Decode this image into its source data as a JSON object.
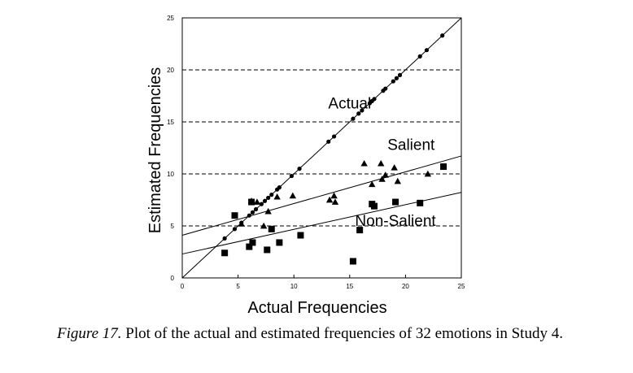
{
  "chart_data": {
    "type": "scatter",
    "xlabel": "Actual Frequencies",
    "ylabel": "Estimated Frequencies",
    "xlim": [
      0,
      25
    ],
    "ylim": [
      0,
      25
    ],
    "x_ticks": [
      "0",
      "5",
      "10",
      "15",
      "20",
      "25"
    ],
    "y_ticks": [
      "0",
      "5",
      "10",
      "15",
      "20",
      "25"
    ],
    "gridlines_dashed_y": [
      5,
      10,
      15,
      20
    ],
    "series": [
      {
        "name": "Actual",
        "marker": "circle",
        "points": [
          [
            3.8,
            3.8
          ],
          [
            4.7,
            4.7
          ],
          [
            5.3,
            5.3
          ],
          [
            6.0,
            6.0
          ],
          [
            6.3,
            6.3
          ],
          [
            6.6,
            6.6
          ],
          [
            7.1,
            7.1
          ],
          [
            7.4,
            7.4
          ],
          [
            7.7,
            7.7
          ],
          [
            8.0,
            8.0
          ],
          [
            8.5,
            8.5
          ],
          [
            8.7,
            8.7
          ],
          [
            9.8,
            9.8
          ],
          [
            10.5,
            10.5
          ],
          [
            13.1,
            13.1
          ],
          [
            13.6,
            13.6
          ],
          [
            15.3,
            15.3
          ],
          [
            15.8,
            15.8
          ],
          [
            16.1,
            16.1
          ],
          [
            16.8,
            16.8
          ],
          [
            17.0,
            17.0
          ],
          [
            17.2,
            17.2
          ],
          [
            18.0,
            18.0
          ],
          [
            18.2,
            18.2
          ],
          [
            18.9,
            18.9
          ],
          [
            19.2,
            19.2
          ],
          [
            19.5,
            19.5
          ],
          [
            21.3,
            21.3
          ],
          [
            21.9,
            21.9
          ],
          [
            23.3,
            23.3
          ]
        ],
        "fit": {
          "slope": 1.0,
          "intercept": 0.0
        }
      },
      {
        "name": "Salient",
        "marker": "triangle",
        "points": [
          [
            5.3,
            5.2
          ],
          [
            6.2,
            7.4
          ],
          [
            6.7,
            7.3
          ],
          [
            7.3,
            5.0
          ],
          [
            7.7,
            6.4
          ],
          [
            8.5,
            7.8
          ],
          [
            9.9,
            7.9
          ],
          [
            13.2,
            7.5
          ],
          [
            13.6,
            7.9
          ],
          [
            13.7,
            7.3
          ],
          [
            16.3,
            11.0
          ],
          [
            17.0,
            9.0
          ],
          [
            17.8,
            11.0
          ],
          [
            17.9,
            9.5
          ],
          [
            18.2,
            9.9
          ],
          [
            19.0,
            10.6
          ],
          [
            19.3,
            9.3
          ],
          [
            22.0,
            10.0
          ]
        ],
        "fit": {
          "slope": 0.305,
          "intercept": 4.1
        }
      },
      {
        "name": "Non-Salient",
        "marker": "square",
        "points": [
          [
            3.8,
            2.4
          ],
          [
            4.7,
            6.0
          ],
          [
            6.0,
            3.0
          ],
          [
            6.2,
            7.3
          ],
          [
            6.3,
            3.4
          ],
          [
            7.6,
            2.7
          ],
          [
            8.0,
            4.7
          ],
          [
            8.7,
            3.4
          ],
          [
            10.6,
            4.1
          ],
          [
            15.3,
            1.6
          ],
          [
            15.9,
            4.6
          ],
          [
            17.0,
            7.1
          ],
          [
            17.2,
            6.9
          ],
          [
            19.1,
            7.3
          ],
          [
            21.3,
            7.2
          ],
          [
            23.4,
            10.7
          ]
        ],
        "fit": {
          "slope": 0.237,
          "intercept": 2.3
        }
      }
    ]
  },
  "caption": {
    "label": "Figure 17.",
    "text": " Plot of the actual and estimated frequencies of 32 emotions in Study 4."
  }
}
